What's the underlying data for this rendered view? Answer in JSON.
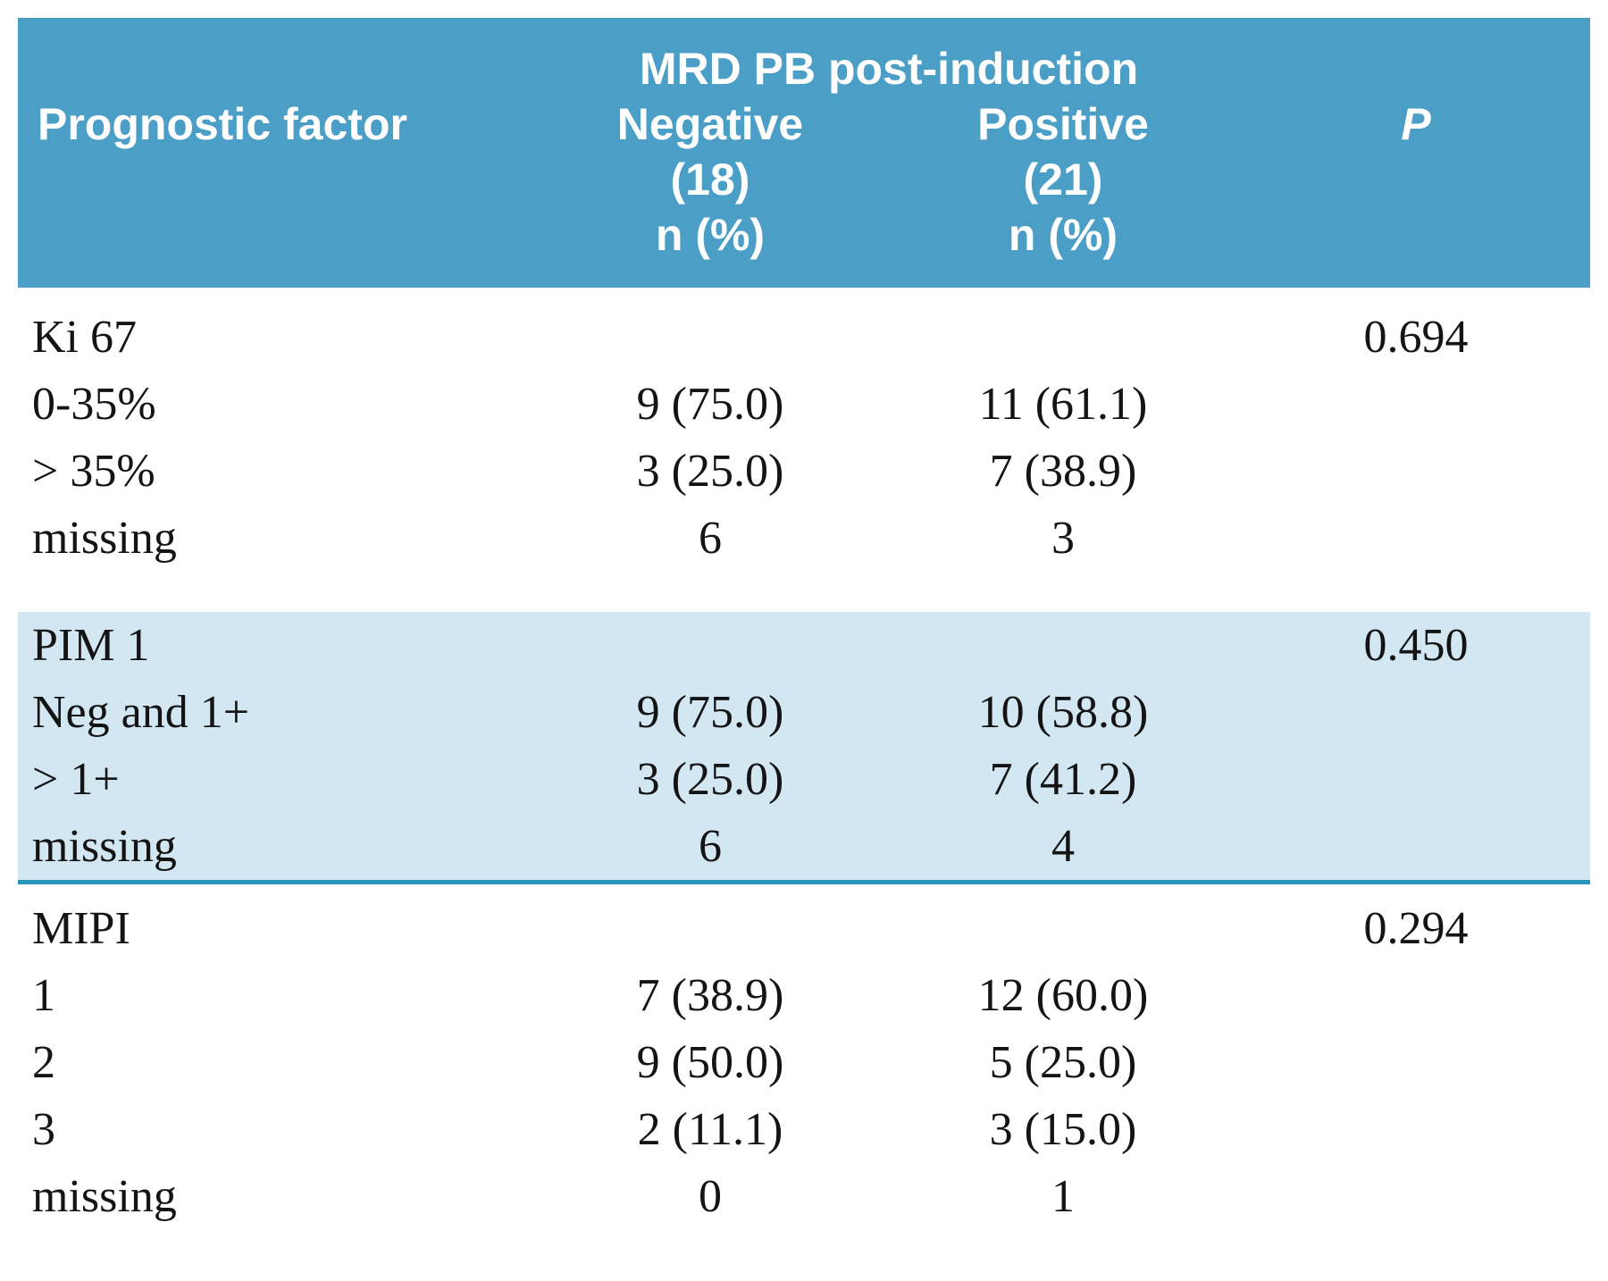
{
  "table": {
    "colors": {
      "header_bg": "#4b9ec6",
      "shaded_row_bg": "#d2e7f2",
      "divider": "#2994ba",
      "rule": "#3a3a3a"
    },
    "header": {
      "span_title": "MRD PB post-induction",
      "col1": "Prognostic factor",
      "col2": {
        "line1": "Negative",
        "line2": "(18)",
        "line3": "n (%)"
      },
      "col3": {
        "line1": "Positive",
        "line2": "(21)",
        "line3": "n (%)"
      },
      "col4": "P"
    },
    "sections": [
      {
        "name": "Ki 67",
        "rows": [
          {
            "factor": "Ki 67",
            "neg": "",
            "pos": "",
            "p": "0.694"
          },
          {
            "factor": "0-35%",
            "neg": "9 (75.0)",
            "pos": "11 (61.1)",
            "p": ""
          },
          {
            "factor": "> 35%",
            "neg": "3 (25.0)",
            "pos": "7 (38.9)",
            "p": ""
          },
          {
            "factor": "missing",
            "neg": "6",
            "pos": "3",
            "p": ""
          }
        ]
      },
      {
        "name": "PIM 1",
        "rows": [
          {
            "factor": "PIM 1",
            "neg": "",
            "pos": "",
            "p": "0.450"
          },
          {
            "factor": "Neg and 1+",
            "neg": "9 (75.0)",
            "pos": "10 (58.8)",
            "p": ""
          },
          {
            "factor": "> 1+",
            "neg": "3 (25.0)",
            "pos": "7 (41.2)",
            "p": ""
          },
          {
            "factor": "missing",
            "neg": "6",
            "pos": "4",
            "p": ""
          }
        ]
      },
      {
        "name": "MIPI",
        "rows": [
          {
            "factor": "MIPI",
            "neg": "",
            "pos": "",
            "p": "0.294"
          },
          {
            "factor": "1",
            "neg": "7 (38.9)",
            "pos": "12 (60.0)",
            "p": ""
          },
          {
            "factor": "2",
            "neg": "9 (50.0)",
            "pos": "5 (25.0)",
            "p": ""
          },
          {
            "factor": "3",
            "neg": "2 (11.1)",
            "pos": "3 (15.0)",
            "p": ""
          },
          {
            "factor": "missing",
            "neg": "0",
            "pos": "1",
            "p": ""
          }
        ]
      }
    ]
  }
}
